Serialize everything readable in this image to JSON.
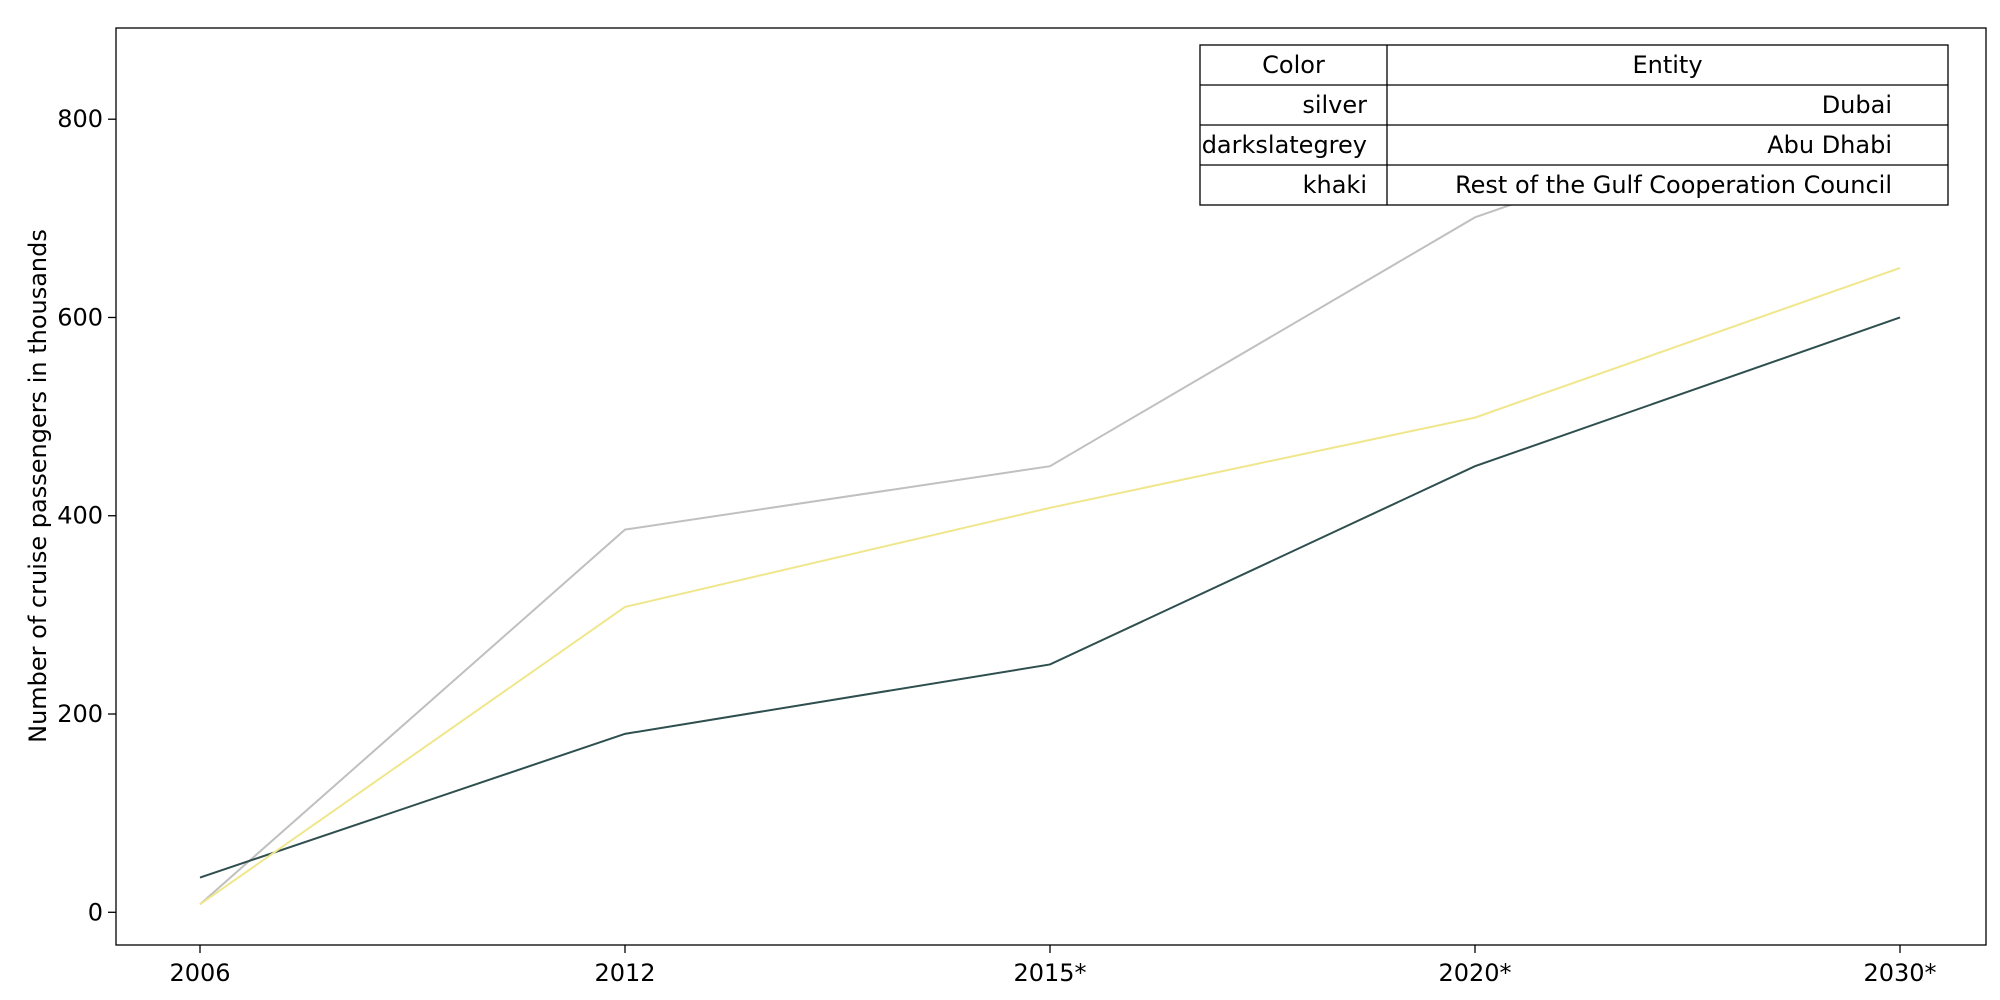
{
  "chart_data": {
    "type": "line",
    "categories": [
      "2006",
      "2012",
      "2015*",
      "2020*",
      "2030*"
    ],
    "ylabel": "Number of cruise passengers in thousands",
    "xlabel": "",
    "ylim": [
      -33,
      892
    ],
    "yticks": [
      0,
      200,
      400,
      600,
      800
    ],
    "grid": false,
    "series": [
      {
        "name": "Dubai",
        "color": "silver",
        "hex": "#c0c0c0",
        "values": [
          8,
          386,
          450,
          701,
          850
        ]
      },
      {
        "name": "Abu Dhabi",
        "color": "darkslategrey",
        "hex": "#2f4f4f",
        "values": [
          35,
          180,
          250,
          450,
          600
        ]
      },
      {
        "name": "Rest of the Gulf Cooperation Council",
        "color": "khaki",
        "hex": "#f0e68c",
        "values": [
          8,
          308,
          408,
          499,
          650
        ]
      }
    ],
    "legend": {
      "placement": "top-right",
      "headers": [
        "Color",
        "Entity"
      ],
      "rows": [
        [
          "silver",
          "Dubai"
        ],
        [
          "darkslategrey",
          "Abu Dhabi"
        ],
        [
          "khaki",
          "Rest of the Gulf Cooperation Council"
        ]
      ]
    }
  }
}
